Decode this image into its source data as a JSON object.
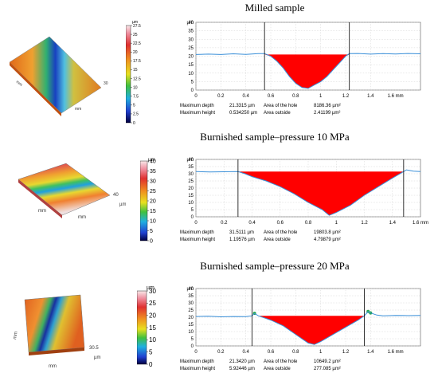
{
  "panels": [
    {
      "title": "Milled sample",
      "colorbar": {
        "unit": "µm",
        "ticks": [
          "27.5",
          "25",
          "22.5",
          "20",
          "17.5",
          "15",
          "12.5",
          "10",
          "7.5",
          "5",
          "2.5",
          "0"
        ]
      },
      "surface_labels": [
        "mm",
        "mm",
        "30"
      ],
      "stats": {
        "depth_label": "Maximum depth",
        "depth_value": "21.3315 µm",
        "hole_label": "Area of the hole",
        "hole_value": "8186.36 µm²",
        "height_label": "Maximum height",
        "height_value": "0.534250 µm",
        "outside_label": "Area outside",
        "outside_value": "2.41199 µm²"
      }
    },
    {
      "title": "Burnished sample–pressure 10 MPa",
      "colorbar": {
        "unit": "µm",
        "ticks": [
          "40",
          "35",
          "30",
          "25",
          "20",
          "15",
          "10",
          "5",
          "0"
        ]
      },
      "surface_labels": [
        "mm",
        "mm",
        "40",
        "µm"
      ],
      "stats": {
        "depth_label": "Maximum depth",
        "depth_value": "31.5111 µm",
        "hole_label": "Area of the hole",
        "hole_value": "19803.8 µm²",
        "height_label": "Maximum height",
        "height_value": "1.19576 µm",
        "outside_label": "Area outside",
        "outside_value": "4.79879 µm²"
      }
    },
    {
      "title": "Burnished sample–pressure 20 MPa",
      "colorbar": {
        "unit": "µm",
        "ticks": [
          "30",
          "25",
          "20",
          "15",
          "10",
          "5",
          "0"
        ]
      },
      "surface_labels": [
        "mm",
        "mm",
        "30.5",
        "µm"
      ],
      "stats": {
        "depth_label": "Maximum depth",
        "depth_value": "21.3420 µm",
        "hole_label": "Area of the hole",
        "hole_value": "10649.2 µm²",
        "height_label": "Maximum height",
        "height_value": "5.92446 µm",
        "outside_label": "Area outside",
        "outside_value": "277.085 µm²"
      }
    }
  ],
  "colors": {
    "profile": "#3a8fd8",
    "hole": "#ff0000",
    "outside": "#22aa44",
    "cursor": "#000000"
  },
  "chart_data": [
    {
      "type": "area",
      "ylabel": "µm",
      "xlabel": "mm",
      "xlim": [
        0,
        1.8
      ],
      "ylim": [
        0,
        40
      ],
      "xticks": [
        0,
        0.2,
        0.4,
        0.6,
        0.8,
        1,
        1.2,
        1.4
      ],
      "xtick_labels": [
        "0",
        "0.2",
        "0.4",
        "0.6",
        "0.8",
        "1",
        "1.2",
        "1.4"
      ],
      "yticks": [
        0,
        5,
        10,
        15,
        20,
        25,
        30,
        35,
        40
      ],
      "end_tick_label": "1.6 mm",
      "cursors": [
        0.55,
        1.23
      ],
      "hole_level": 21,
      "profile": [
        [
          0,
          21
        ],
        [
          0.1,
          21.2
        ],
        [
          0.2,
          21
        ],
        [
          0.3,
          21.4
        ],
        [
          0.4,
          21.1
        ],
        [
          0.5,
          21.5
        ],
        [
          0.55,
          21.5
        ],
        [
          0.6,
          20
        ],
        [
          0.65,
          17
        ],
        [
          0.7,
          13
        ],
        [
          0.75,
          8
        ],
        [
          0.8,
          4
        ],
        [
          0.85,
          1.5
        ],
        [
          0.9,
          1
        ],
        [
          0.95,
          3
        ],
        [
          1.0,
          5
        ],
        [
          1.05,
          8
        ],
        [
          1.1,
          12
        ],
        [
          1.15,
          16
        ],
        [
          1.2,
          20
        ],
        [
          1.23,
          21.5
        ],
        [
          1.3,
          21.6
        ],
        [
          1.4,
          21.2
        ],
        [
          1.5,
          21.5
        ],
        [
          1.6,
          21.3
        ],
        [
          1.7,
          21.6
        ],
        [
          1.8,
          21.4
        ]
      ]
    },
    {
      "type": "area",
      "ylabel": "µm",
      "xlabel": "mm",
      "xlim": [
        0,
        1.6
      ],
      "ylim": [
        0,
        40
      ],
      "xticks": [
        0,
        0.2,
        0.4,
        0.6,
        0.8,
        1,
        1.2,
        1.4
      ],
      "xtick_labels": [
        "0",
        "0.2",
        "0.4",
        "0.6",
        "0.8",
        "1",
        "1.2",
        "1.4"
      ],
      "yticks": [
        0,
        5,
        10,
        15,
        20,
        25,
        30,
        35,
        40
      ],
      "end_tick_label": "1.6 mm",
      "cursors": [
        0.3,
        1.48
      ],
      "hole_level": 31.5,
      "profile": [
        [
          0,
          31.5
        ],
        [
          0.1,
          31.2
        ],
        [
          0.2,
          31.4
        ],
        [
          0.3,
          31.5
        ],
        [
          0.35,
          30
        ],
        [
          0.4,
          28
        ],
        [
          0.5,
          25
        ],
        [
          0.6,
          21
        ],
        [
          0.7,
          16
        ],
        [
          0.8,
          10
        ],
        [
          0.9,
          5
        ],
        [
          0.95,
          1
        ],
        [
          1.0,
          3
        ],
        [
          1.1,
          8
        ],
        [
          1.2,
          15
        ],
        [
          1.3,
          21
        ],
        [
          1.4,
          27
        ],
        [
          1.48,
          31.5
        ],
        [
          1.5,
          32.7
        ],
        [
          1.55,
          31.8
        ],
        [
          1.6,
          31.5
        ]
      ]
    },
    {
      "type": "area",
      "ylabel": "µm",
      "xlabel": "mm",
      "xlim": [
        0,
        1.8
      ],
      "ylim": [
        0,
        40
      ],
      "xticks": [
        0,
        0.2,
        0.4,
        0.6,
        0.8,
        1,
        1.2,
        1.4
      ],
      "xtick_labels": [
        "0",
        "0.2",
        "0.4",
        "0.6",
        "0.8",
        "1",
        "1.2",
        "1.4"
      ],
      "yticks": [
        0,
        5,
        10,
        15,
        20,
        25,
        30,
        35,
        40
      ],
      "end_tick_label": "1.6 mm",
      "cursors": [
        0.45,
        1.35
      ],
      "hole_level": 21,
      "profile": [
        [
          0,
          20.5
        ],
        [
          0.1,
          20.7
        ],
        [
          0.2,
          20.3
        ],
        [
          0.3,
          20.5
        ],
        [
          0.4,
          20.4
        ],
        [
          0.45,
          21
        ],
        [
          0.47,
          22.7
        ],
        [
          0.5,
          21
        ],
        [
          0.55,
          19.5
        ],
        [
          0.6,
          18
        ],
        [
          0.7,
          14
        ],
        [
          0.8,
          8
        ],
        [
          0.9,
          2
        ],
        [
          0.95,
          1
        ],
        [
          1.0,
          3
        ],
        [
          1.1,
          8
        ],
        [
          1.2,
          13
        ],
        [
          1.3,
          18
        ],
        [
          1.35,
          21
        ],
        [
          1.38,
          24
        ],
        [
          1.4,
          23
        ],
        [
          1.45,
          21.5
        ],
        [
          1.5,
          21
        ],
        [
          1.6,
          21.3
        ],
        [
          1.7,
          21.1
        ],
        [
          1.8,
          21.2
        ]
      ]
    }
  ]
}
